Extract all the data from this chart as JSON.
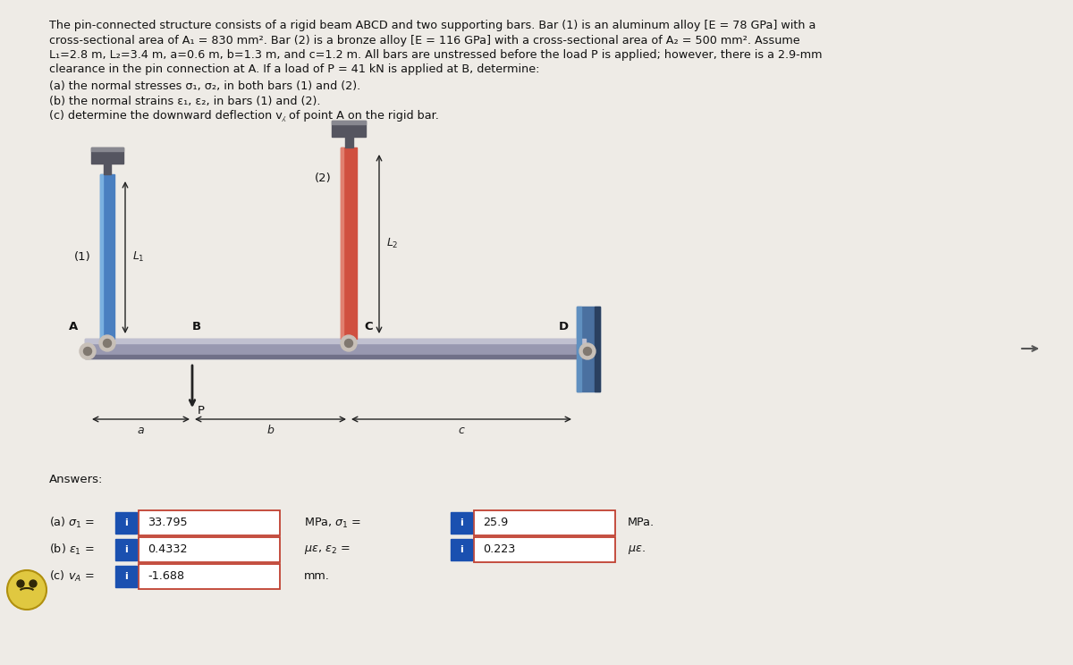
{
  "bg_color": "#eeebe6",
  "text_color": "#111111",
  "bar1_color": "#4a7fc0",
  "bar1_highlight": "#7ab0e0",
  "bar2_color": "#d05040",
  "bar2_highlight": "#e08070",
  "beam_color": "#9898b0",
  "beam_highlight": "#c0c0d0",
  "beam_shadow": "#707088",
  "cap_color": "#555560",
  "cap_highlight": "#888890",
  "wall_color_main": "#4a70a0",
  "wall_color_dark": "#2a4060",
  "wall_color_side": "#6090c0",
  "pin_outer": "#c8c0b8",
  "pin_inner": "#807870",
  "dim_color": "#222222",
  "input_box_bg": "#ffffff",
  "input_border": "#c04030",
  "info_btn_color": "#1a50b0",
  "info_btn_text": "i",
  "title_line1": "The pin-connected structure consists of a rigid beam ABCD and two supporting bars. Bar (1) is an aluminum alloy [E = 78 GPa] with a",
  "title_line2": "cross-sectional area of A₁ = 830 mm². Bar (2) is a bronze alloy [E = 116 GPa] with a cross-sectional area of A₂ = 500 mm². Assume",
  "title_line3": "L₁=2.8 m, L₂=3.4 m, a=0.6 m, b=1.3 m, and c=1.2 m. All bars are unstressed before the load P is applied; however, there is a 2.9-mm",
  "title_line4": "clearance in the pin connection at A. If a load of P = 41 kN is applied at B, determine:",
  "bullet1": "(a) the normal stresses σ₁, σ₂, in both bars (1) and (2).",
  "bullet2": "(b) the normal strains ε₁, ε₂, in bars (1) and (2).",
  "bullet3": "(c) determine the downward deflection v⁁ of point A on the rigid bar.",
  "answers_label": "Answers:",
  "val_a1": "33.795",
  "val_a2": "25.9",
  "val_b1": "0.4332",
  "val_b2": "0.223",
  "val_c1": "-1.688"
}
